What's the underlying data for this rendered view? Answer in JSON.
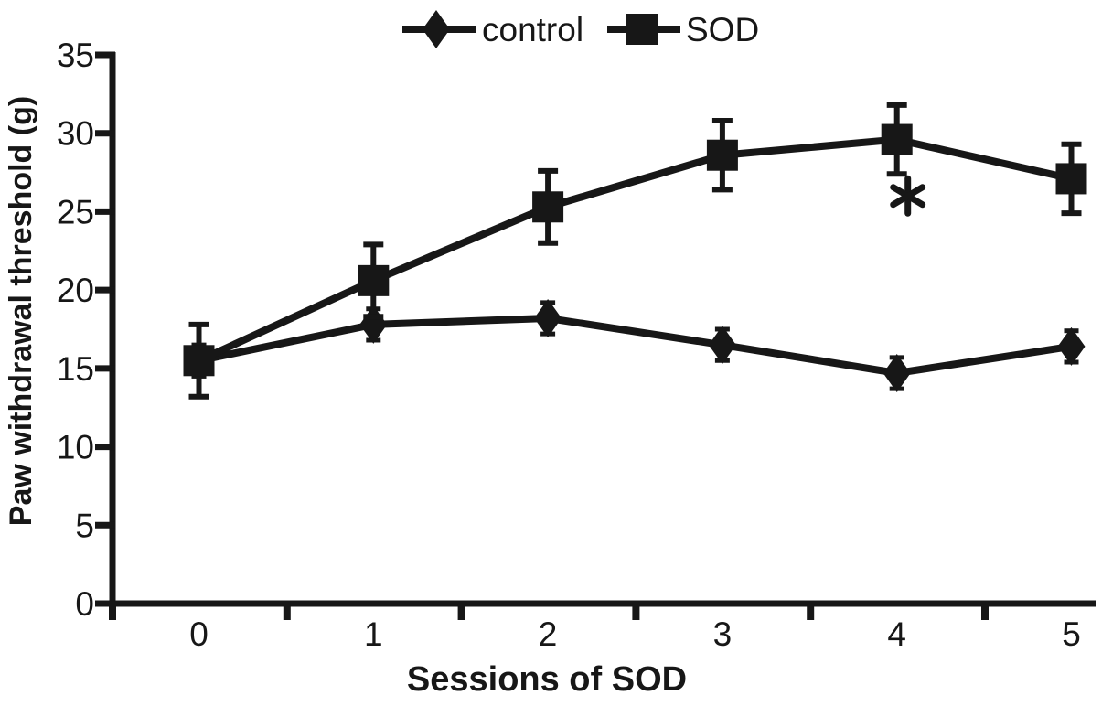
{
  "figure": {
    "background_color": "#ffffff",
    "ink_color": "#171717"
  },
  "chart_data": {
    "type": "line",
    "title": "",
    "xlabel": "Sessions of SOD",
    "ylabel": "Paw withdrawal threshold (g)",
    "categories": [
      "0",
      "1",
      "2",
      "3",
      "4",
      "5"
    ],
    "yticks": [
      0,
      5,
      10,
      15,
      20,
      25,
      30,
      35
    ],
    "ylim": [
      0,
      35
    ],
    "grid": false,
    "legend_position": "top-center",
    "error_bars": true,
    "series": [
      {
        "name": "control",
        "marker": "diamond",
        "values": [
          15.5,
          17.8,
          18.2,
          16.5,
          14.7,
          16.4
        ],
        "errors": [
          1.0,
          1.0,
          1.0,
          1.0,
          1.0,
          1.0
        ]
      },
      {
        "name": "SOD",
        "marker": "square",
        "values": [
          15.5,
          20.6,
          25.3,
          28.6,
          29.6,
          27.1
        ],
        "errors": [
          2.3,
          2.3,
          2.3,
          2.2,
          2.2,
          2.2
        ]
      }
    ],
    "annotation": {
      "text": "*",
      "series": "SOD",
      "category_index": 4,
      "position": "below-error-bar"
    }
  }
}
